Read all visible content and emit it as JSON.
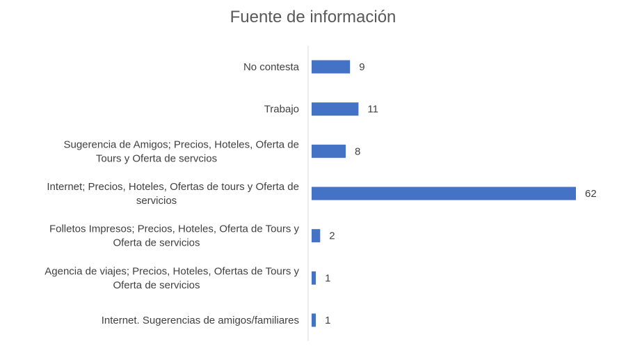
{
  "chart_data": {
    "type": "bar",
    "orientation": "horizontal",
    "title": "Fuente de información",
    "xlabel": "",
    "ylabel": "",
    "categories": [
      [
        "No contesta"
      ],
      [
        "Trabajo"
      ],
      [
        "Sugerencia de Amigos; Precios, Hoteles, Oferta de",
        "Tours y Oferta de servcios"
      ],
      [
        "Internet; Precios, Hoteles, Ofertas de tours y Oferta de",
        "servicios"
      ],
      [
        "Folletos Impresos; Precios, Hoteles, Oferta de Tours y",
        "Oferta de servicios"
      ],
      [
        "Agencia de viajes; Precios, Hoteles, Ofertas de Tours y",
        "Oferta de servicios"
      ],
      [
        "Internet. Sugerencias de amigos/familiares"
      ]
    ],
    "values": [
      9,
      11,
      8,
      62,
      2,
      1,
      1
    ],
    "value_labels": [
      "9",
      "11",
      "8",
      "62",
      "2",
      "1",
      "1"
    ],
    "xlim": [
      0,
      62
    ],
    "bar_color": "#4472C4",
    "grid": false,
    "legend": "none"
  }
}
